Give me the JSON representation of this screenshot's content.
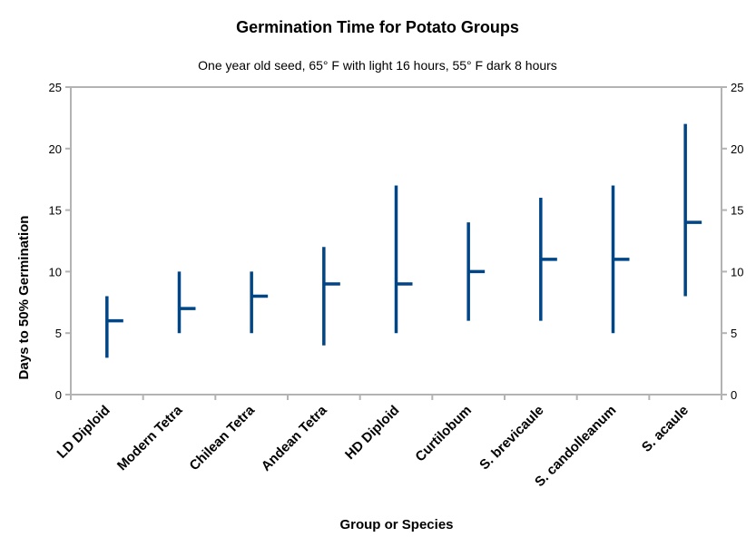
{
  "chart_data": {
    "type": "stock-range",
    "title": "Germination Time for Potato Groups",
    "subtitle": "One year old seed, 65° F with light 16 hours, 55° F dark 8 hours",
    "xlabel": "Group or Species",
    "ylabel": "Days to 50% Germination",
    "ylim": [
      0,
      25
    ],
    "yticks": [
      "0",
      "5",
      "10",
      "15",
      "20",
      "25"
    ],
    "grid": false,
    "secondary_y_axis": true,
    "categories": [
      "LD Diploid",
      "Modern Tetra",
      "Chilean Tetra",
      "Andean Tetra",
      "HD Diploid",
      "Curtilobum",
      "S. brevicaule",
      "S. candolleanum",
      "S. acaule"
    ],
    "series": [
      {
        "low": [
          3,
          5,
          5,
          4,
          5,
          6,
          6,
          5,
          8
        ]
      },
      {
        "high": [
          8,
          10,
          10,
          12,
          17,
          14,
          16,
          17,
          22
        ]
      },
      {
        "close": [
          6,
          7,
          8,
          9,
          9,
          10,
          11,
          11,
          14
        ]
      }
    ],
    "colors": {
      "bar": "#004586",
      "frame": "#b3b3b3"
    }
  }
}
